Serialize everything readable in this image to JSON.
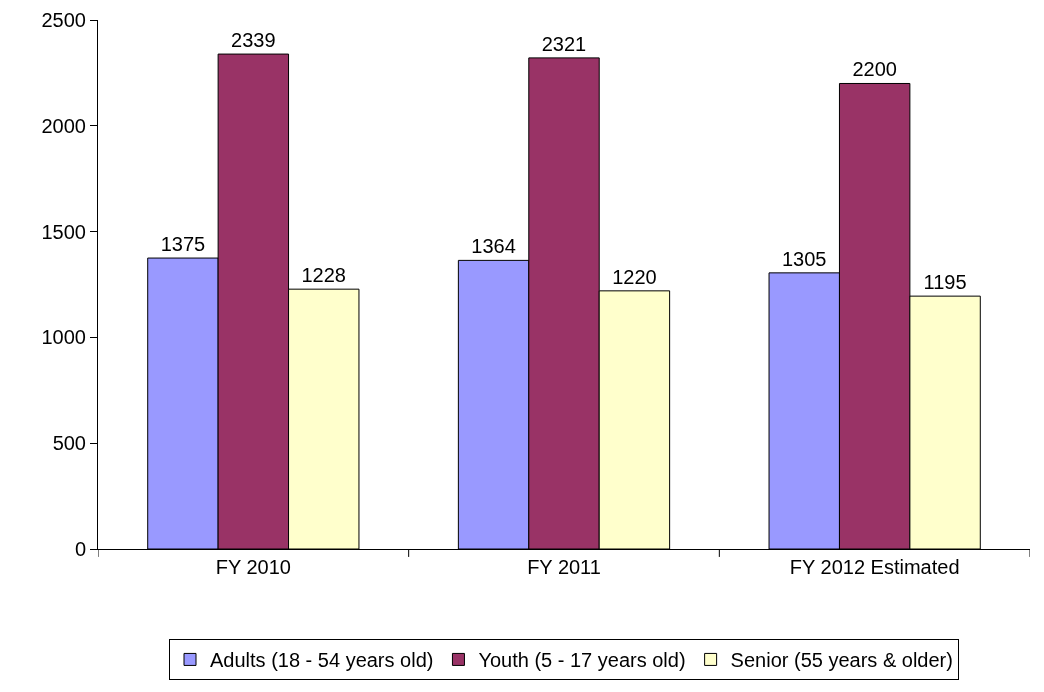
{
  "chart_data": {
    "type": "bar",
    "categories": [
      "FY 2010",
      "FY 2011",
      "FY 2012 Estimated"
    ],
    "series": [
      {
        "name": "Adults (18 - 54 years old)",
        "color": "#9999ff",
        "values": [
          1375,
          1364,
          1305
        ]
      },
      {
        "name": "Youth (5 - 17 years old)",
        "color": "#993366",
        "values": [
          2339,
          2321,
          2200
        ]
      },
      {
        "name": "Senior (55 years & older)",
        "color": "#ffffcc",
        "values": [
          1228,
          1220,
          1195
        ]
      }
    ],
    "ylim": [
      0,
      2500
    ],
    "yticks": [
      0,
      500,
      1000,
      1500,
      2000,
      2500
    ],
    "grid": false,
    "legend": "bottom",
    "data_labels": true
  }
}
